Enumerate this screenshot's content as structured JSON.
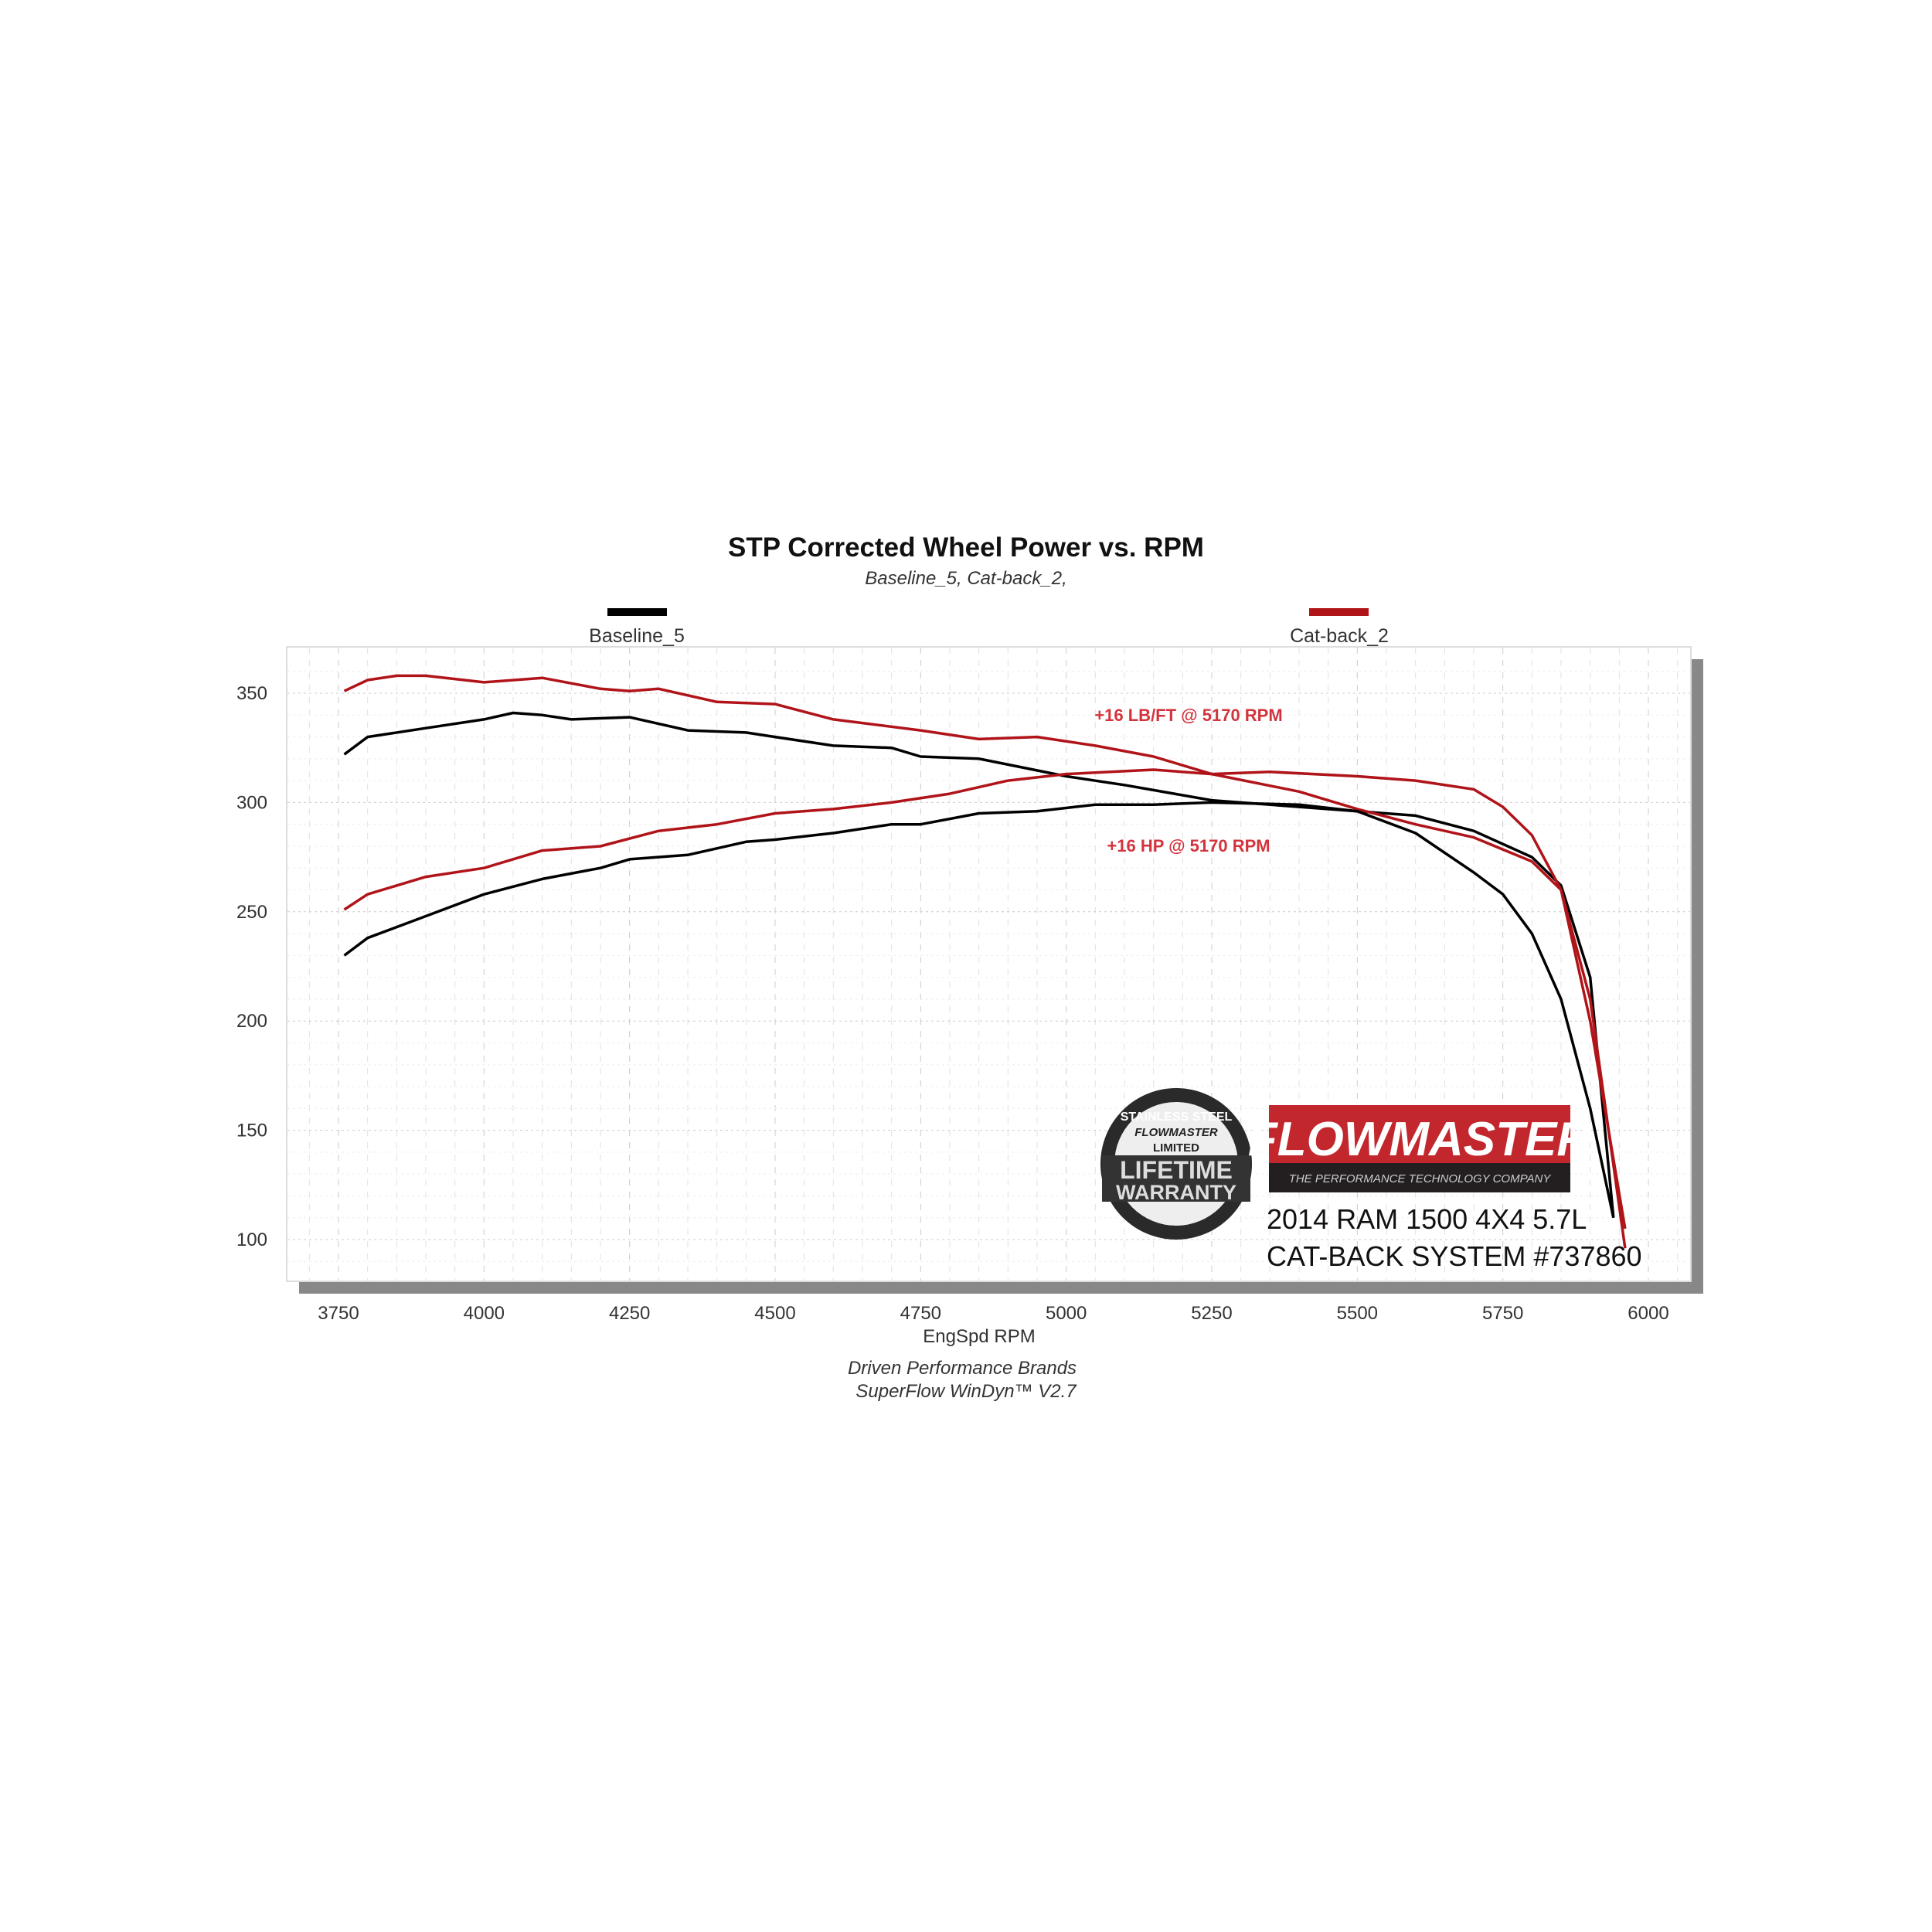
{
  "chart_data": {
    "type": "line",
    "title": "STP Corrected Wheel Power vs. RPM",
    "subtitle": "Baseline_5, Cat-back_2,",
    "xlabel": "EngSpd  RPM",
    "ylabel": "",
    "xlim": [
      3700,
      6080
    ],
    "ylim": [
      82,
      370
    ],
    "x_ticks": [
      "3750",
      "4000",
      "4250",
      "4500",
      "4750",
      "5000",
      "5250",
      "5500",
      "5750",
      "6000"
    ],
    "y_ticks": [
      "100",
      "150",
      "200",
      "250",
      "300",
      "350"
    ],
    "grid": true,
    "legend": [
      {
        "name": "Baseline_5",
        "color": "#000000"
      },
      {
        "name": "Cat-back_2",
        "color": "#b01419"
      }
    ],
    "series": [
      {
        "name": "Baseline_5",
        "color": "#000000",
        "x": [
          3760,
          3800,
          3900,
          4000,
          4050,
          4100,
          4150,
          4250,
          4350,
          4450,
          4500,
          4600,
          4700,
          4750,
          4850,
          5000,
          5100,
          5250,
          5500,
          5600,
          5700,
          5800,
          5850,
          5900,
          5940
        ],
        "values": [
          322,
          330,
          334,
          338,
          341,
          340,
          338,
          339,
          333,
          332,
          330,
          326,
          325,
          321,
          320,
          312,
          308,
          301,
          296,
          294,
          287,
          275,
          262,
          220,
          110
        ]
      },
      {
        "name": "Cat-back_2",
        "color": "#b01419",
        "x": [
          3760,
          3800,
          3850,
          3900,
          4000,
          4100,
          4200,
          4250,
          4300,
          4400,
          4500,
          4600,
          4750,
          4850,
          4950,
          5050,
          5150,
          5250,
          5400,
          5500,
          5600,
          5700,
          5800,
          5850,
          5900,
          5960
        ],
        "values": [
          351,
          356,
          358,
          358,
          355,
          357,
          352,
          351,
          352,
          346,
          345,
          338,
          333,
          329,
          330,
          326,
          321,
          313,
          305,
          297,
          290,
          284,
          273,
          260,
          210,
          96
        ]
      },
      {
        "name": "Baseline_5",
        "color": "#000000",
        "x": [
          3760,
          3800,
          3900,
          4000,
          4100,
          4200,
          4250,
          4350,
          4450,
          4500,
          4600,
          4700,
          4750,
          4850,
          4950,
          5050,
          5150,
          5250,
          5400,
          5500,
          5600,
          5700,
          5750,
          5800,
          5850,
          5900,
          5940
        ],
        "values": [
          230,
          238,
          248,
          258,
          265,
          270,
          274,
          276,
          282,
          283,
          286,
          290,
          290,
          295,
          296,
          299,
          299,
          300,
          299,
          296,
          286,
          268,
          258,
          240,
          210,
          160,
          110
        ]
      },
      {
        "name": "Cat-back_2",
        "color": "#b01419",
        "x": [
          3760,
          3800,
          3900,
          4000,
          4100,
          4200,
          4300,
          4400,
          4500,
          4600,
          4700,
          4800,
          4900,
          5000,
          5150,
          5250,
          5350,
          5500,
          5600,
          5700,
          5750,
          5800,
          5850,
          5900,
          5960
        ],
        "values": [
          251,
          258,
          266,
          270,
          278,
          280,
          287,
          290,
          295,
          297,
          300,
          304,
          310,
          313,
          315,
          313,
          314,
          312,
          310,
          306,
          298,
          285,
          260,
          200,
          105
        ]
      }
    ],
    "annotations": [
      "+16 LB/FT @ 5170 RPM",
      "+16 HP @ 5170 RPM"
    ]
  },
  "footer": [
    "Driven Performance Brands",
    "SuperFlow WinDyn™  V2.7"
  ],
  "logos": {
    "warranty": [
      "STAINLESS STEEL",
      "FLOWMASTER",
      "LIMITED",
      "LIFETIME",
      "WARRANTY"
    ],
    "brand": "FLOWMASTER",
    "tagline": "THE PERFORMANCE TECHNOLOGY COMPANY"
  },
  "caption": [
    "2014 RAM 1500 4X4 5.7L",
    "CAT-BACK SYSTEM #737860"
  ]
}
